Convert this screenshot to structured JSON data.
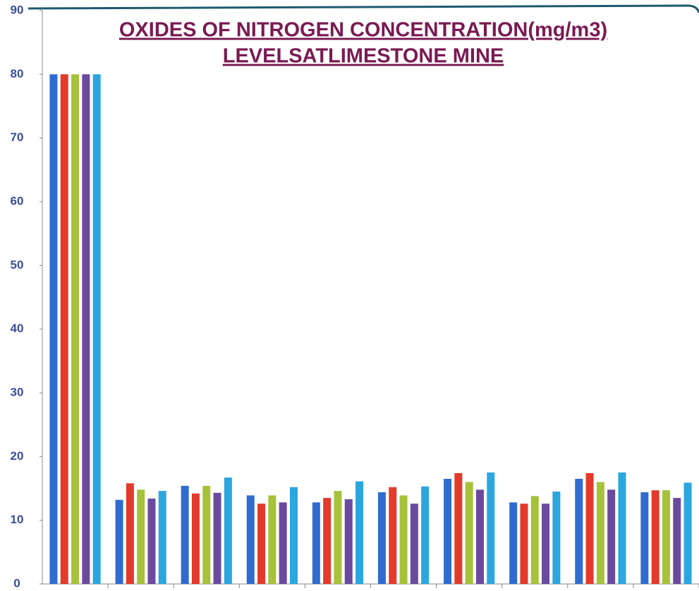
{
  "chart_data": {
    "type": "bar",
    "title": [
      "OXIDES OF NITROGEN CONCENTRATION(mg/m3)",
      "LEVELSATLIMESTONE MINE"
    ],
    "categories": [
      null,
      null,
      null,
      null,
      null,
      null,
      null,
      null,
      null,
      null
    ],
    "series": [
      {
        "color": "#2f6ccf",
        "values": [
          80,
          13.2,
          15.4,
          13.9,
          12.8,
          14.4,
          16.5,
          12.8,
          16.5,
          14.4
        ]
      },
      {
        "color": "#e33a2c",
        "values": [
          80,
          15.8,
          14.2,
          12.6,
          13.5,
          15.2,
          17.4,
          12.6,
          17.4,
          14.7
        ]
      },
      {
        "color": "#a6c23a",
        "values": [
          80,
          14.8,
          15.4,
          13.9,
          14.6,
          13.9,
          16.0,
          13.8,
          16.0,
          14.7
        ]
      },
      {
        "color": "#6a4a9e",
        "values": [
          80,
          13.4,
          14.3,
          12.8,
          13.3,
          12.6,
          14.8,
          12.6,
          14.8,
          13.5
        ]
      },
      {
        "color": "#2ba6de",
        "values": [
          80,
          14.6,
          16.7,
          15.2,
          16.1,
          15.3,
          17.5,
          14.5,
          17.5,
          15.9
        ]
      }
    ],
    "ylim": [
      0,
      90
    ],
    "yticks": [
      0,
      10,
      20,
      30,
      40,
      50,
      60,
      70,
      80,
      90
    ]
  }
}
